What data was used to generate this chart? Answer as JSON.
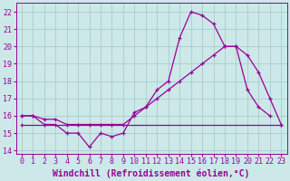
{
  "background_color": "#cce8e8",
  "grid_color": "#aacccc",
  "line_color": "#990099",
  "xlabel": "Windchill (Refroidissement éolien,°C)",
  "xlabel_fontsize": 7,
  "tick_fontsize": 6,
  "xlim": [
    -0.5,
    23.5
  ],
  "ylim": [
    13.8,
    22.5
  ],
  "yticks": [
    14,
    15,
    16,
    17,
    18,
    19,
    20,
    21,
    22
  ],
  "xticks": [
    0,
    1,
    2,
    3,
    4,
    5,
    6,
    7,
    8,
    9,
    10,
    11,
    12,
    13,
    14,
    15,
    16,
    17,
    18,
    19,
    20,
    21,
    22,
    23
  ],
  "line1_x": [
    0,
    1,
    2,
    3,
    4,
    5,
    6,
    7,
    8,
    9,
    10,
    11,
    12,
    13,
    14,
    15,
    16,
    17,
    18,
    19,
    20,
    21,
    22,
    23
  ],
  "line1_y": [
    16.0,
    16.0,
    15.5,
    15.5,
    15.0,
    15.0,
    14.2,
    15.0,
    14.8,
    15.0,
    16.2,
    16.5,
    17.5,
    18.0,
    20.5,
    22.0,
    21.8,
    21.3,
    20.0,
    20.0,
    17.5,
    16.5,
    16.0,
    null
  ],
  "line2_x": [
    0,
    1,
    2,
    3,
    4,
    5,
    6,
    7,
    8,
    9,
    10,
    11,
    12,
    13,
    14,
    15,
    16,
    17,
    18,
    19,
    20,
    21,
    22,
    23
  ],
  "line2_y": [
    16.0,
    16.0,
    15.8,
    15.8,
    15.5,
    15.5,
    15.5,
    15.5,
    15.5,
    15.5,
    16.0,
    16.5,
    17.0,
    17.5,
    18.0,
    18.5,
    19.0,
    19.5,
    20.0,
    20.0,
    19.5,
    18.5,
    17.0,
    15.5
  ],
  "line3_x": [
    0,
    23
  ],
  "line3_y": [
    15.5,
    15.5
  ]
}
